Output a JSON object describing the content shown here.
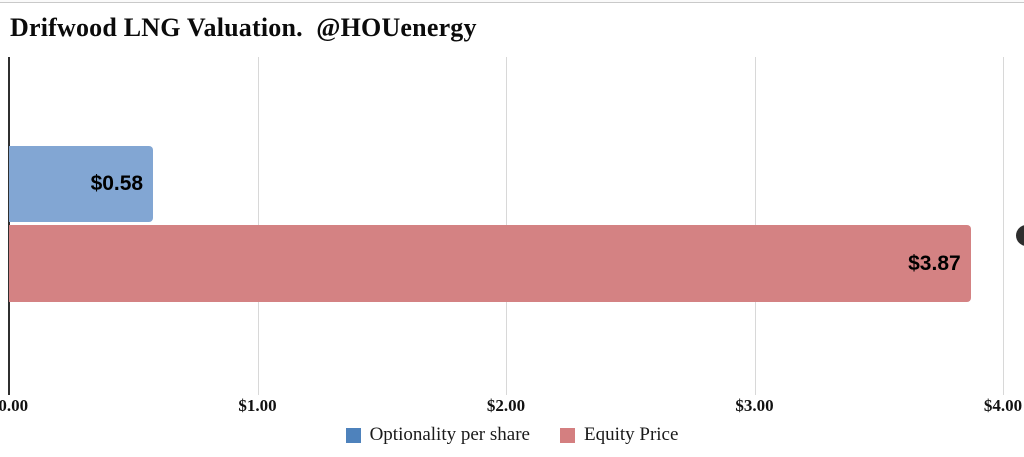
{
  "title": {
    "text": "Drifwood LNG Valuation.  @HOUenergy"
  },
  "chart_data": {
    "type": "bar",
    "orientation": "horizontal",
    "title": "Drifwood LNG Valuation. @HOUenergy",
    "categories": [
      "Optionality per share",
      "Equity Price"
    ],
    "values": [
      0.58,
      3.87
    ],
    "value_labels": [
      "$0.58",
      "$3.87"
    ],
    "bar_colors": [
      "#82a6d3",
      "#d48283"
    ],
    "xlim": [
      0,
      4
    ],
    "x_ticks": [
      {
        "value": 0,
        "label": "$0.00"
      },
      {
        "value": 1,
        "label": "$1.00"
      },
      {
        "value": 2,
        "label": "$2.00"
      },
      {
        "value": 3,
        "label": "$3.00"
      },
      {
        "value": 4,
        "label": "$4.00"
      }
    ],
    "grid": true,
    "legend_position": "bottom"
  },
  "legend": {
    "items": [
      {
        "label": "Optionality per share",
        "color": "#4e82bc"
      },
      {
        "label": "Equity Price",
        "color": "#d47f80"
      }
    ]
  },
  "colors": {
    "gridline": "#d8d8d8",
    "axis": "#2f2f2f",
    "background": "#ffffff",
    "top_border": "#c9c9c9",
    "edge_button": "#2e2e2e"
  }
}
